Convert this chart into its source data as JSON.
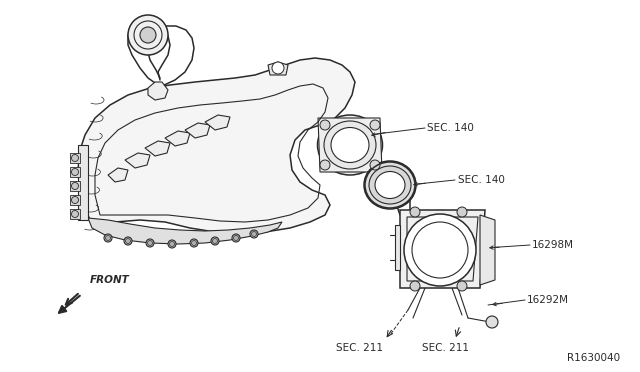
{
  "bg_color": "#ffffff",
  "line_color": "#2a2a2a",
  "label_color": "#2a2a2a",
  "fig_width": 6.4,
  "fig_height": 3.72,
  "dpi": 100,
  "labels": {
    "sec140_top": "SEC. 140",
    "sec140_mid": "SEC. 140",
    "part16298": "16298M",
    "part16292": "16292M",
    "sec211_left": "SEC. 211",
    "sec211_right": "SEC. 211",
    "front": "FRONT",
    "ref": "R1630040"
  }
}
